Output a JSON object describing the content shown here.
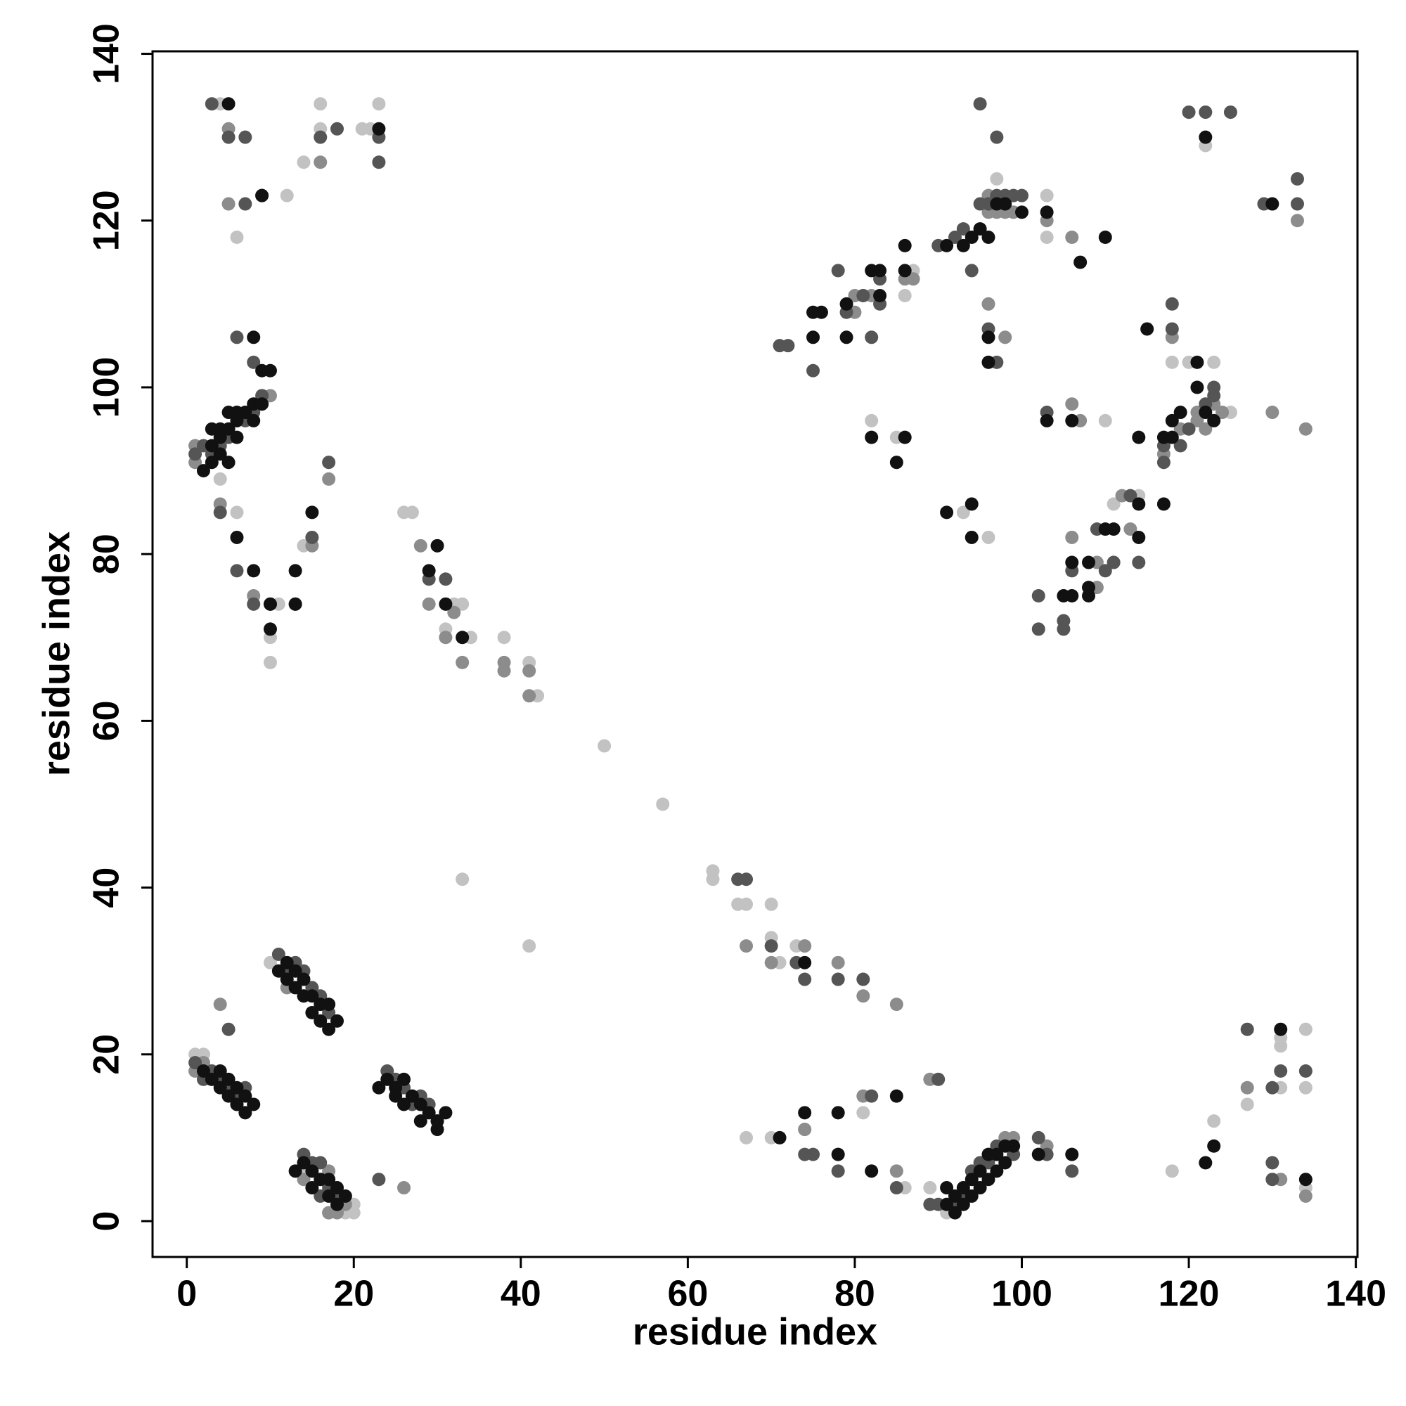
{
  "chart_data": {
    "type": "scatter",
    "x_label": "residue index",
    "y_label": "residue index",
    "xlim": [
      -4.1,
      140.2
    ],
    "ylim": [
      -4.3,
      140.3
    ],
    "xticks": [
      0,
      20,
      40,
      60,
      80,
      100,
      120,
      140
    ],
    "yticks": [
      0,
      20,
      40,
      60,
      80,
      100,
      120,
      140
    ],
    "grid": false,
    "series": [
      {
        "color": "#c2c2c2",
        "x": [
          1,
          2,
          4,
          6,
          4,
          6,
          12,
          14,
          16,
          16,
          21,
          22,
          23,
          10,
          10,
          11,
          14,
          10,
          14,
          17,
          20,
          20,
          19,
          26,
          27,
          31,
          32,
          33,
          34,
          38,
          41,
          42,
          33,
          41,
          50,
          57,
          63,
          63,
          66,
          67,
          70,
          70,
          71,
          73,
          74,
          67,
          70,
          74,
          81,
          85,
          86,
          89,
          91,
          82,
          85,
          86,
          87,
          81,
          93,
          96,
          96,
          97,
          98,
          99,
          103,
          103,
          110,
          111,
          114,
          118,
          118,
          120,
          123,
          123,
          125,
          127,
          131,
          131,
          131,
          134,
          134,
          134,
          122
        ],
        "values": [
          20,
          20,
          89,
          85,
          134,
          118,
          123,
          127,
          131,
          134,
          131,
          131,
          134,
          67,
          70,
          74,
          81,
          31,
          6,
          1,
          1,
          2,
          1,
          85,
          85,
          71,
          74,
          74,
          70,
          70,
          67,
          63,
          41,
          33,
          57,
          50,
          41,
          42,
          38,
          38,
          38,
          34,
          31,
          33,
          33,
          10,
          10,
          11,
          13,
          6,
          4,
          4,
          1,
          96,
          94,
          111,
          114,
          111,
          85,
          82,
          110,
          125,
          123,
          121,
          123,
          118,
          96,
          86,
          87,
          103,
          6,
          103,
          12,
          103,
          97,
          14,
          21,
          22,
          16,
          23,
          16,
          4,
          129
        ]
      },
      {
        "color": "#8c8c8c",
        "x": [
          1,
          1,
          4,
          6,
          5,
          5,
          9,
          16,
          17,
          15,
          9,
          10,
          8,
          1,
          4,
          2,
          6,
          12,
          14,
          17,
          18,
          17,
          19,
          26,
          28,
          29,
          33,
          31,
          32,
          38,
          38,
          41,
          41,
          67,
          70,
          74,
          78,
          81,
          85,
          89,
          81,
          74,
          85,
          98,
          99,
          103,
          80,
          82,
          86,
          87,
          80,
          96,
          96,
          97,
          98,
          99,
          96,
          98,
          103,
          106,
          107,
          106,
          109,
          111,
          112,
          113,
          117,
          118,
          119,
          121,
          121,
          122,
          123,
          124,
          127,
          131,
          134,
          134,
          133,
          130,
          106,
          109
        ],
        "values": [
          91,
          93,
          86,
          96,
          122,
          131,
          123,
          127,
          89,
          81,
          98,
          99,
          75,
          18,
          26,
          19,
          14,
          28,
          5,
          1,
          1,
          6,
          2,
          4,
          81,
          74,
          67,
          70,
          73,
          66,
          67,
          66,
          63,
          33,
          31,
          33,
          31,
          27,
          26,
          17,
          15,
          11,
          6,
          10,
          10,
          9,
          111,
          111,
          113,
          113,
          109,
          123,
          121,
          121,
          121,
          121,
          110,
          106,
          120,
          118,
          96,
          98,
          79,
          79,
          87,
          83,
          92,
          106,
          95,
          96,
          97,
          95,
          98,
          97,
          16,
          5,
          3,
          95,
          120,
          97,
          82,
          76
        ]
      },
      {
        "color": "#555555",
        "x": [
          1,
          2,
          3,
          4,
          5,
          7,
          8,
          9,
          6,
          8,
          4,
          6,
          8,
          10,
          13,
          15,
          17,
          7,
          7,
          5,
          3,
          16,
          18,
          23,
          23,
          1,
          2,
          3,
          4,
          5,
          5,
          6,
          7,
          11,
          12,
          13,
          14,
          15,
          16,
          17,
          14,
          15,
          16,
          16,
          17,
          18,
          24,
          25,
          26,
          27,
          28,
          29,
          30,
          23,
          29,
          31,
          66,
          67,
          70,
          73,
          74,
          75,
          74,
          78,
          81,
          82,
          78,
          90,
          85,
          89,
          90,
          92,
          93,
          94,
          95,
          96,
          97,
          99,
          103,
          102,
          106,
          71,
          72,
          75,
          78,
          79,
          81,
          83,
          83,
          82,
          90,
          92,
          93,
          94,
          95,
          96,
          97,
          98,
          99,
          100,
          97,
          95,
          96,
          97,
          102,
          102,
          105,
          105,
          106,
          109,
          111,
          113,
          114,
          117,
          117,
          118,
          118,
          119,
          120,
          120,
          122,
          125,
          123,
          123,
          122,
          127,
          130,
          130,
          130,
          131,
          133,
          133,
          134,
          129,
          103,
          110
        ],
        "values": [
          92,
          93,
          92,
          93,
          94,
          96,
          97,
          99,
          106,
          103,
          85,
          78,
          74,
          74,
          74,
          82,
          91,
          122,
          130,
          130,
          134,
          130,
          131,
          127,
          130,
          19,
          17,
          18,
          17,
          23,
          16,
          15,
          16,
          32,
          30,
          31,
          30,
          28,
          27,
          25,
          8,
          7,
          7,
          3,
          4,
          3,
          18,
          17,
          16,
          14,
          15,
          14,
          12,
          5,
          77,
          77,
          41,
          41,
          33,
          31,
          29,
          8,
          8,
          29,
          29,
          15,
          6,
          17,
          4,
          2,
          2,
          2,
          3,
          6,
          7,
          7,
          9,
          8,
          8,
          10,
          6,
          105,
          105,
          102,
          114,
          109,
          111,
          110,
          113,
          106,
          117,
          118,
          119,
          114,
          122,
          122,
          123,
          123,
          123,
          123,
          130,
          134,
          107,
          103,
          75,
          71,
          72,
          71,
          78,
          83,
          79,
          87,
          79,
          91,
          93,
          107,
          110,
          93,
          95,
          133,
          133,
          133,
          99,
          100,
          98,
          23,
          16,
          7,
          5,
          18,
          125,
          122,
          18,
          122,
          97,
          78
        ]
      },
      {
        "color": "#111111",
        "x": [
          2,
          3,
          3,
          4,
          4,
          5,
          5,
          6,
          6,
          7,
          8,
          8,
          9,
          9,
          10,
          8,
          4,
          5,
          6,
          3,
          6,
          8,
          10,
          10,
          13,
          13,
          15,
          9,
          23,
          5,
          2,
          3,
          4,
          4,
          5,
          5,
          6,
          6,
          7,
          7,
          8,
          11,
          12,
          13,
          13,
          14,
          14,
          15,
          15,
          16,
          16,
          17,
          17,
          18,
          12,
          13,
          14,
          15,
          15,
          16,
          17,
          17,
          18,
          18,
          19,
          23,
          24,
          25,
          25,
          26,
          26,
          27,
          28,
          28,
          29,
          30,
          30,
          31,
          29,
          31,
          33,
          30,
          74,
          78,
          78,
          82,
          85,
          71,
          74,
          91,
          91,
          92,
          92,
          93,
          93,
          94,
          94,
          95,
          95,
          96,
          96,
          97,
          97,
          98,
          98,
          99,
          102,
          106,
          122,
          123,
          131,
          134,
          75,
          75,
          76,
          79,
          79,
          82,
          83,
          83,
          82,
          86,
          85,
          86,
          86,
          91,
          93,
          94,
          95,
          96,
          97,
          98,
          100,
          96,
          96,
          91,
          94,
          94,
          103,
          103,
          106,
          107,
          110,
          105,
          106,
          106,
          108,
          108,
          108,
          110,
          111,
          114,
          114,
          114,
          115,
          117,
          117,
          118,
          118,
          119,
          121,
          121,
          122,
          122,
          130,
          123
        ],
        "values": [
          90,
          91,
          93,
          92,
          94,
          91,
          95,
          94,
          96,
          97,
          96,
          98,
          98,
          102,
          102,
          106,
          95,
          97,
          97,
          95,
          82,
          78,
          71,
          74,
          78,
          74,
          85,
          123,
          131,
          134,
          18,
          17,
          16,
          18,
          15,
          17,
          14,
          16,
          13,
          15,
          14,
          30,
          29,
          28,
          30,
          27,
          29,
          25,
          27,
          24,
          26,
          23,
          26,
          24,
          31,
          6,
          7,
          4,
          6,
          5,
          3,
          5,
          2,
          4,
          3,
          16,
          17,
          15,
          16,
          14,
          17,
          15,
          12,
          14,
          13,
          11,
          12,
          13,
          78,
          74,
          70,
          81,
          13,
          13,
          8,
          6,
          15,
          10,
          31,
          2,
          4,
          1,
          3,
          2,
          4,
          3,
          5,
          4,
          6,
          5,
          8,
          6,
          8,
          7,
          9,
          9,
          8,
          8,
          7,
          9,
          23,
          5,
          106,
          109,
          109,
          106,
          110,
          114,
          114,
          111,
          94,
          94,
          91,
          117,
          114,
          117,
          117,
          118,
          119,
          118,
          122,
          122,
          121,
          103,
          106,
          85,
          86,
          82,
          121,
          96,
          96,
          115,
          118,
          75,
          75,
          79,
          79,
          75,
          76,
          83,
          83,
          86,
          82,
          94,
          107,
          86,
          94,
          94,
          96,
          97,
          100,
          103,
          97,
          130,
          122,
          96
        ]
      }
    ]
  }
}
